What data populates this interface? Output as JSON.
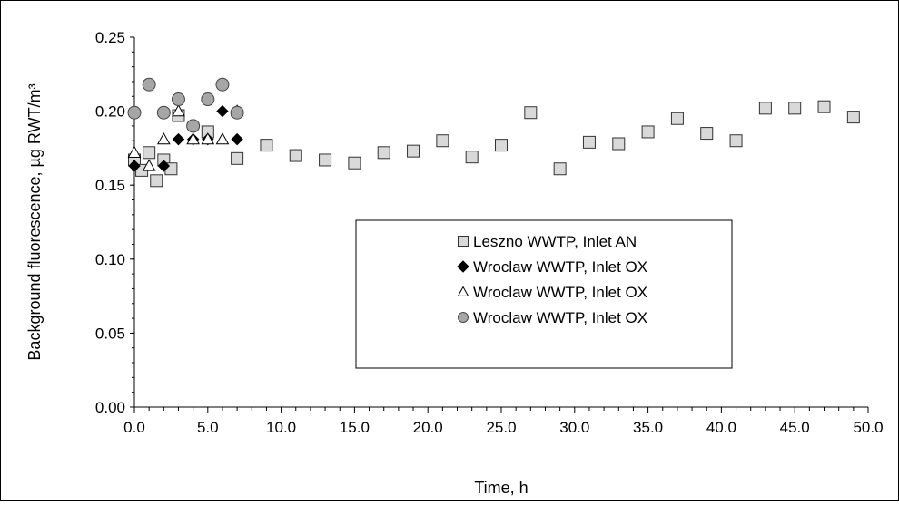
{
  "chart_data": {
    "type": "scatter",
    "title": "",
    "xlabel": "Time, h",
    "ylabel": "Background fluorescence, µg RWT/m³",
    "xlim": [
      0,
      50
    ],
    "ylim": [
      0,
      0.25
    ],
    "xticks": [
      "0.0",
      "5.0",
      "10.0",
      "15.0",
      "20.0",
      "25.0",
      "30.0",
      "35.0",
      "40.0",
      "45.0",
      "50.0"
    ],
    "yticks": [
      "0.00",
      "0.05",
      "0.10",
      "0.15",
      "0.20",
      "0.25"
    ],
    "grid": false,
    "legend_position": "center-right",
    "series": [
      {
        "name": "Leszno WWTP, Inlet AN",
        "marker": "square",
        "color": "#d9d9d9",
        "points": [
          [
            0,
            0.167
          ],
          [
            0.5,
            0.16
          ],
          [
            1,
            0.172
          ],
          [
            1.5,
            0.153
          ],
          [
            2,
            0.167
          ],
          [
            2.5,
            0.161
          ],
          [
            3,
            0.197
          ],
          [
            5,
            0.186
          ],
          [
            7,
            0.168
          ],
          [
            9,
            0.177
          ],
          [
            11,
            0.17
          ],
          [
            13,
            0.167
          ],
          [
            15,
            0.165
          ],
          [
            17,
            0.172
          ],
          [
            19,
            0.173
          ],
          [
            21,
            0.18
          ],
          [
            23,
            0.169
          ],
          [
            25,
            0.177
          ],
          [
            27,
            0.199
          ],
          [
            29,
            0.161
          ],
          [
            31,
            0.179
          ],
          [
            33,
            0.178
          ],
          [
            35,
            0.186
          ],
          [
            37,
            0.195
          ],
          [
            39,
            0.185
          ],
          [
            41,
            0.18
          ],
          [
            43,
            0.202
          ],
          [
            45,
            0.202
          ],
          [
            47,
            0.203
          ],
          [
            49,
            0.196
          ]
        ]
      },
      {
        "name": "Wroclaw WWTP, Inlet OX",
        "marker": "diamond",
        "color": "#000000",
        "points": [
          [
            0,
            0.163
          ],
          [
            2,
            0.163
          ],
          [
            3,
            0.181
          ],
          [
            4,
            0.181
          ],
          [
            5,
            0.181
          ],
          [
            6,
            0.2
          ],
          [
            7,
            0.181
          ]
        ]
      },
      {
        "name": "Wroclaw WWTP, Inlet OX",
        "marker": "triangle",
        "color": "#ffffff",
        "points": [
          [
            0,
            0.172
          ],
          [
            1,
            0.163
          ],
          [
            2,
            0.181
          ],
          [
            3,
            0.2
          ],
          [
            4,
            0.181
          ],
          [
            5,
            0.181
          ],
          [
            6,
            0.181
          ],
          [
            7,
            0.2
          ]
        ]
      },
      {
        "name": "Wroclaw WWTP, Inlet OX",
        "marker": "circle",
        "color": "#a6a6a6",
        "points": [
          [
            0,
            0.199
          ],
          [
            1,
            0.218
          ],
          [
            2,
            0.199
          ],
          [
            3,
            0.208
          ],
          [
            4,
            0.19
          ],
          [
            5,
            0.208
          ],
          [
            6,
            0.218
          ],
          [
            7,
            0.199
          ]
        ]
      }
    ]
  }
}
